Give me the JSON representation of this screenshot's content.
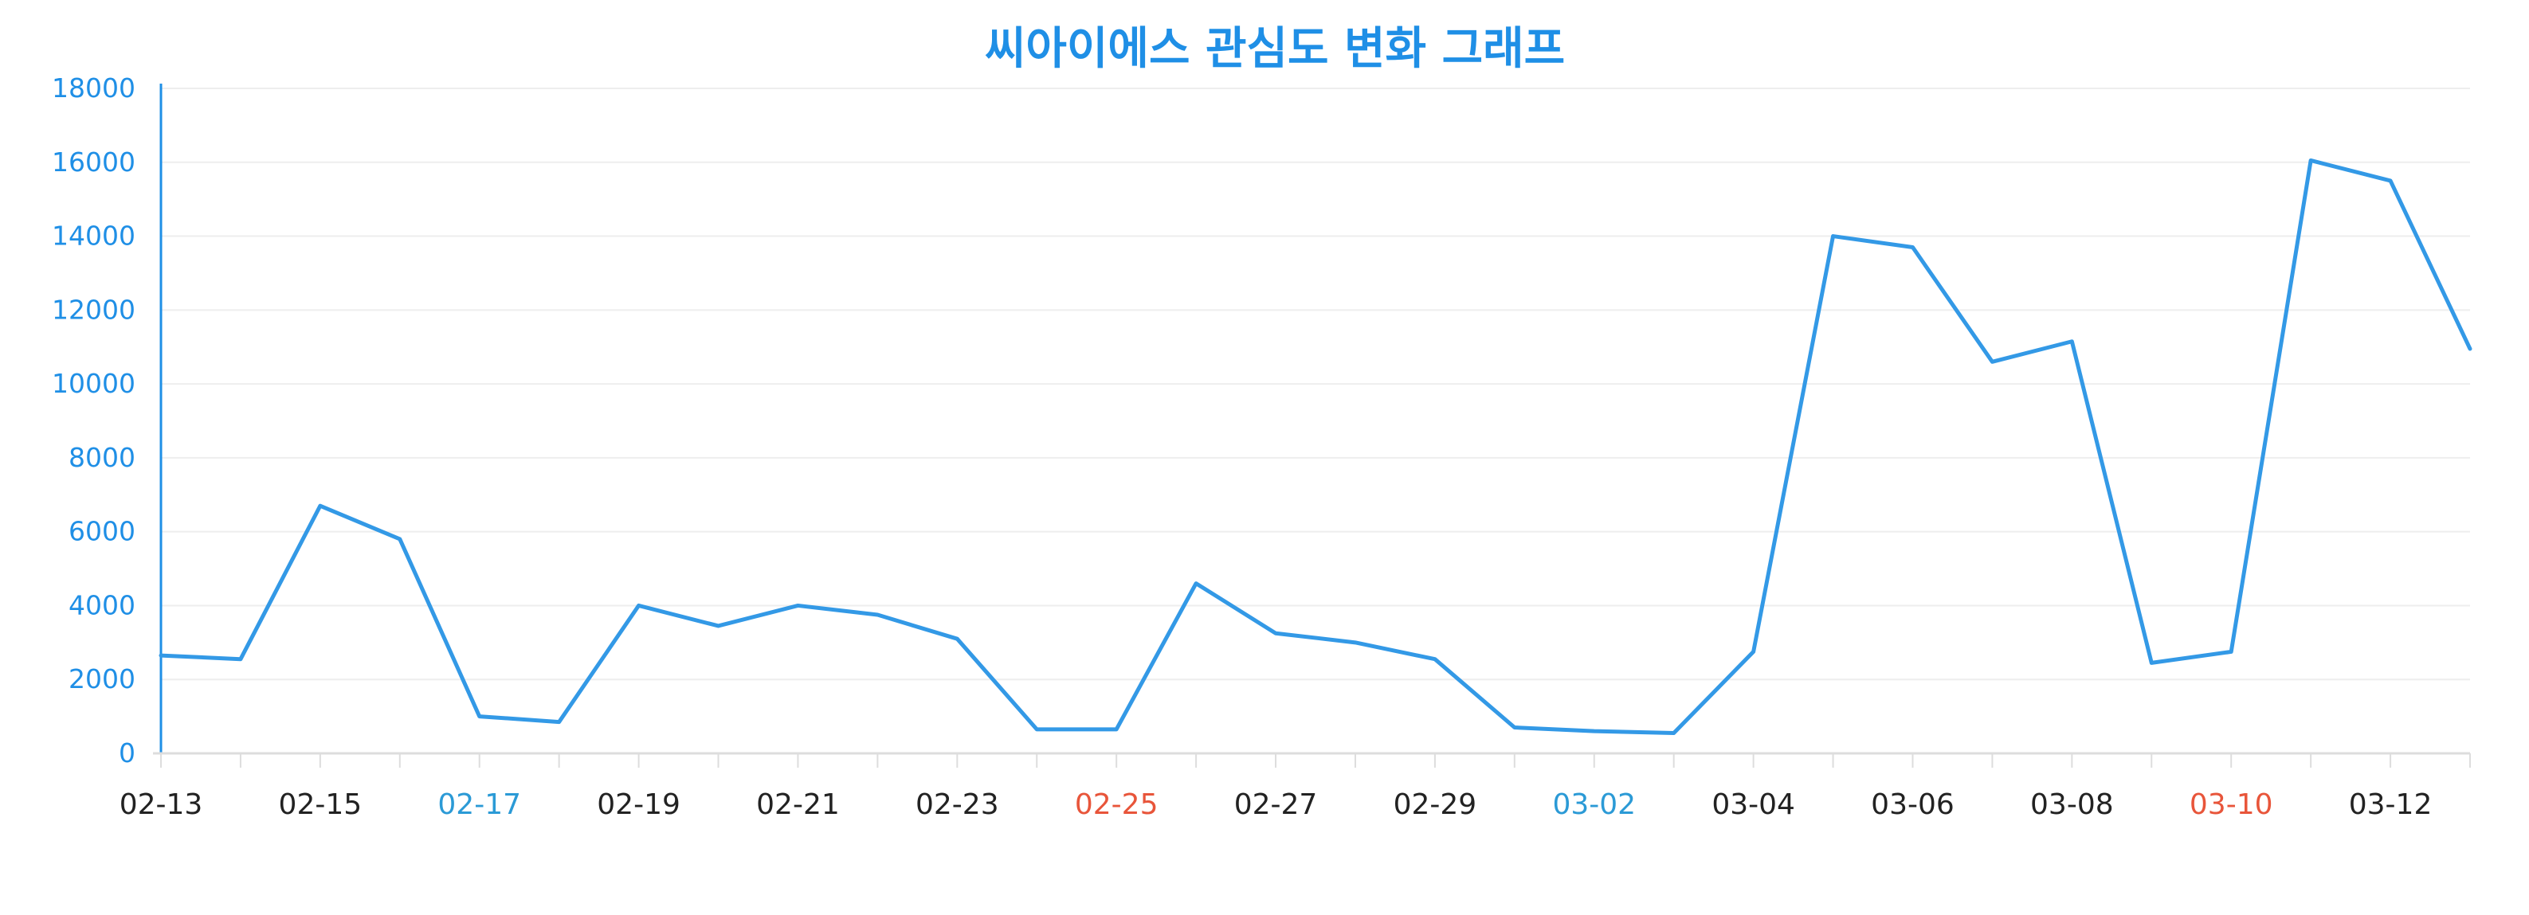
{
  "chart_data": {
    "type": "line",
    "title": "씨아이에스 관심도 변화 그래프",
    "xlabel": "",
    "ylabel": "",
    "ylim": [
      0,
      18000
    ],
    "y_ticks": [
      0,
      2000,
      4000,
      6000,
      8000,
      10000,
      12000,
      14000,
      16000,
      18000
    ],
    "x": [
      "02-13",
      "02-14",
      "02-15",
      "02-16",
      "02-17",
      "02-18",
      "02-19",
      "02-20",
      "02-21",
      "02-22",
      "02-23",
      "02-24",
      "02-25",
      "02-26",
      "02-27",
      "02-28",
      "02-29",
      "03-01",
      "03-02",
      "03-03",
      "03-04",
      "03-05",
      "03-06",
      "03-07",
      "03-08",
      "03-09",
      "03-10",
      "03-11",
      "03-12",
      "03-13"
    ],
    "x_tick_labels": [
      "02-13",
      "02-15",
      "02-17",
      "02-19",
      "02-21",
      "02-23",
      "02-25",
      "02-27",
      "02-29",
      "03-02",
      "03-04",
      "03-06",
      "03-08",
      "03-10",
      "03-12"
    ],
    "series": [
      {
        "values": [
          2650,
          2550,
          6700,
          5800,
          1000,
          850,
          4000,
          3450,
          4000,
          3750,
          3100,
          650,
          650,
          4600,
          3250,
          3000,
          2550,
          700,
          600,
          550,
          2750,
          14000,
          13700,
          10600,
          11150,
          2450,
          2750,
          16050,
          15500,
          10950
        ],
        "color": "#3399e6"
      }
    ],
    "grid": true,
    "colors": {
      "title": "#1f8fe6",
      "ytick": "#1f8fe6",
      "axis": "#1f8fe6",
      "grid": "#eeeeee",
      "xtick_default": "#222222",
      "xtick_saturday": "#2b9ad6",
      "xtick_sunday": "#e8553a"
    },
    "x_label_colors": {
      "02-17": "saturday",
      "03-02": "saturday",
      "02-25": "sunday",
      "03-10": "sunday"
    }
  }
}
